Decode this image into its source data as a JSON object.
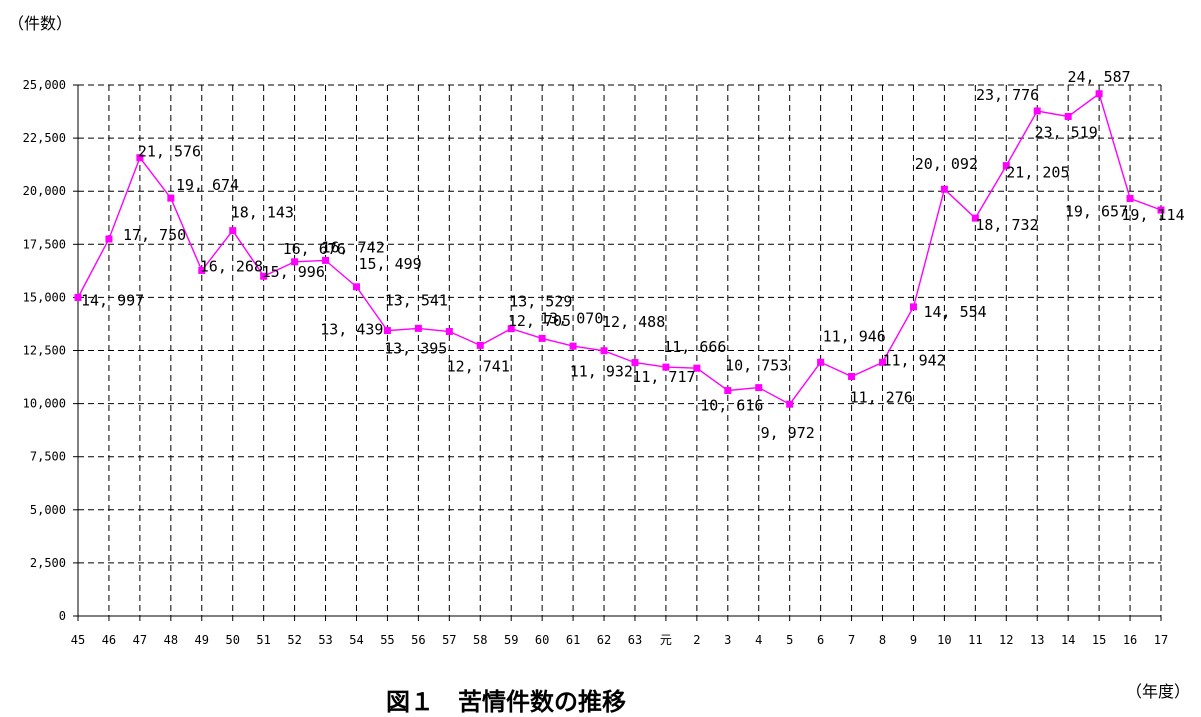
{
  "chart_data": {
    "type": "line",
    "title": "図１　苦情件数の推移",
    "ylabel": "（件数）",
    "xlabel": "（年度）",
    "ylim": [
      0,
      25000
    ],
    "yticks": [
      "0",
      "2,500",
      "5,000",
      "7,500",
      "10,000",
      "12,500",
      "15,000",
      "17,500",
      "20,000",
      "22,500",
      "25,000"
    ],
    "grid": true,
    "legend": "none",
    "color": "#ff00ff",
    "categories": [
      "45",
      "46",
      "47",
      "48",
      "49",
      "50",
      "51",
      "52",
      "53",
      "54",
      "55",
      "56",
      "57",
      "58",
      "59",
      "60",
      "61",
      "62",
      "63",
      "元",
      "2",
      "3",
      "4",
      "5",
      "6",
      "7",
      "8",
      "9",
      "10",
      "11",
      "12",
      "13",
      "14",
      "15",
      "16",
      "17"
    ],
    "values": [
      14997,
      17750,
      21576,
      19674,
      16268,
      18143,
      15996,
      16676,
      16742,
      15499,
      13439,
      13541,
      13395,
      12741,
      13529,
      13070,
      12705,
      12488,
      11932,
      11717,
      11666,
      10616,
      10753,
      9972,
      11946,
      11276,
      11942,
      14554,
      20092,
      18732,
      21205,
      23776,
      23519,
      24587,
      19657,
      19114
    ],
    "data_labels": [
      "14, 997",
      "17, 750",
      "21, 576",
      "19, 674",
      "16, 268",
      "18, 143",
      "15, 996",
      "16, 676",
      "16, 742",
      "15, 499",
      "13, 439",
      "13, 541",
      "13, 395",
      "12, 741",
      "13, 529",
      "13, 070",
      "12, 705",
      "12, 488",
      "11, 932",
      "11, 717",
      "11, 666",
      "10, 616",
      "10, 753",
      "9, 972",
      "11, 946",
      "11, 276",
      "11, 942",
      "14, 554",
      "20, 092",
      "18, 732",
      "21, 205",
      "23, 776",
      "23, 519",
      "24, 587",
      "19, 657",
      "19, 114"
    ]
  }
}
